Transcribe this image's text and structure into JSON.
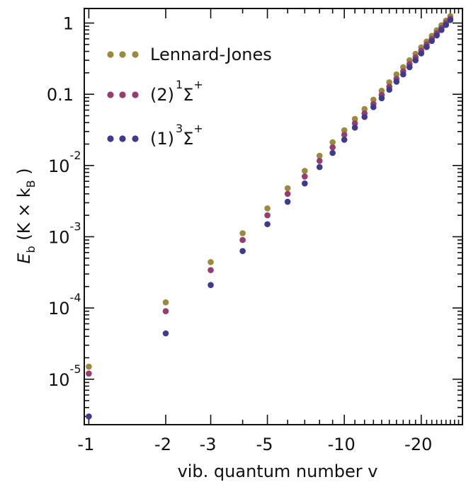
{
  "chart_data": {
    "type": "scatter",
    "xlabel": "vib. quantum number  v",
    "ylabel": {
      "E": "E",
      "b": "b",
      "paren_open": " (K × k",
      "B": "B",
      "paren_close": " )"
    },
    "xscale": "log-of-magnitude",
    "yscale": "log",
    "xlim": [
      0.96,
      29
    ],
    "ylim": [
      2.3e-06,
      1.6
    ],
    "x_ticks": [
      {
        "v": -1,
        "label": "-1"
      },
      {
        "v": -2,
        "label": "-2"
      },
      {
        "v": -3,
        "label": "-3"
      },
      {
        "v": -5,
        "label": "-5"
      },
      {
        "v": -10,
        "label": "-10"
      },
      {
        "v": -20,
        "label": "-20"
      }
    ],
    "y_ticks": [
      {
        "value": 1,
        "main": "1",
        "exp": ""
      },
      {
        "value": 0.1,
        "main": "0.1",
        "exp": ""
      },
      {
        "value": 0.01,
        "main": "10",
        "exp": "-2"
      },
      {
        "value": 0.001,
        "main": "10",
        "exp": "-3"
      },
      {
        "value": 0.0001,
        "main": "10",
        "exp": "-4"
      },
      {
        "value": 1e-05,
        "main": "10",
        "exp": "-5"
      }
    ],
    "legend_position": "top-left",
    "series": [
      {
        "name": "Lennard-Jones",
        "legend": {
          "main": "Lennard-Jones"
        },
        "color": "#9a8a3e",
        "x": [
          -1,
          -2,
          -3,
          -4,
          -5,
          -6,
          -7,
          -8,
          -9,
          -10,
          -11,
          -12,
          -13,
          -14,
          -15,
          -16,
          -17,
          -18,
          -19,
          -20,
          -21,
          -22,
          -23,
          -24,
          -25,
          -26
        ],
        "y": [
          1.5e-05,
          0.00012,
          0.00044,
          0.00112,
          0.0025,
          0.0048,
          0.0084,
          0.0137,
          0.0212,
          0.0312,
          0.045,
          0.062,
          0.084,
          0.112,
          0.147,
          0.19,
          0.24,
          0.3,
          0.37,
          0.455,
          0.55,
          0.66,
          0.79,
          0.93,
          1.08,
          1.25
        ]
      },
      {
        "name": "(2)1Σ+",
        "legend": {
          "pre": "(2)",
          "sup1": "1",
          "sym": "Σ",
          "sup2": "+"
        },
        "color": "#953d6e",
        "x": [
          -1,
          -2,
          -3,
          -4,
          -5,
          -6,
          -7,
          -8,
          -9,
          -10,
          -11,
          -12,
          -13,
          -14,
          -15,
          -16,
          -17,
          -18,
          -19,
          -20,
          -21,
          -22,
          -23,
          -24,
          -25,
          -26
        ],
        "y": [
          1.2e-05,
          9e-05,
          0.00034,
          0.0009,
          0.002,
          0.004,
          0.007,
          0.0116,
          0.018,
          0.027,
          0.039,
          0.054,
          0.073,
          0.098,
          0.128,
          0.165,
          0.21,
          0.265,
          0.33,
          0.41,
          0.5,
          0.6,
          0.72,
          0.85,
          1.0,
          1.15
        ]
      },
      {
        "name": "(1)3Σ+",
        "legend": {
          "pre": "(1)",
          "sup1": "3",
          "sym": "Σ",
          "sup2": "+"
        },
        "color": "#3e3b8e",
        "x": [
          -1,
          -2,
          -3,
          -4,
          -5,
          -6,
          -7,
          -8,
          -9,
          -10,
          -11,
          -12,
          -13,
          -14,
          -15,
          -16,
          -17,
          -18,
          -19,
          -20,
          -21,
          -22,
          -23,
          -24,
          -25,
          -26
        ],
        "y": [
          3e-06,
          4.4e-05,
          0.00021,
          0.00063,
          0.0015,
          0.0031,
          0.0056,
          0.0095,
          0.015,
          0.023,
          0.034,
          0.048,
          0.066,
          0.088,
          0.116,
          0.15,
          0.19,
          0.24,
          0.3,
          0.375,
          0.46,
          0.56,
          0.67,
          0.8,
          0.94,
          1.1
        ]
      }
    ]
  }
}
